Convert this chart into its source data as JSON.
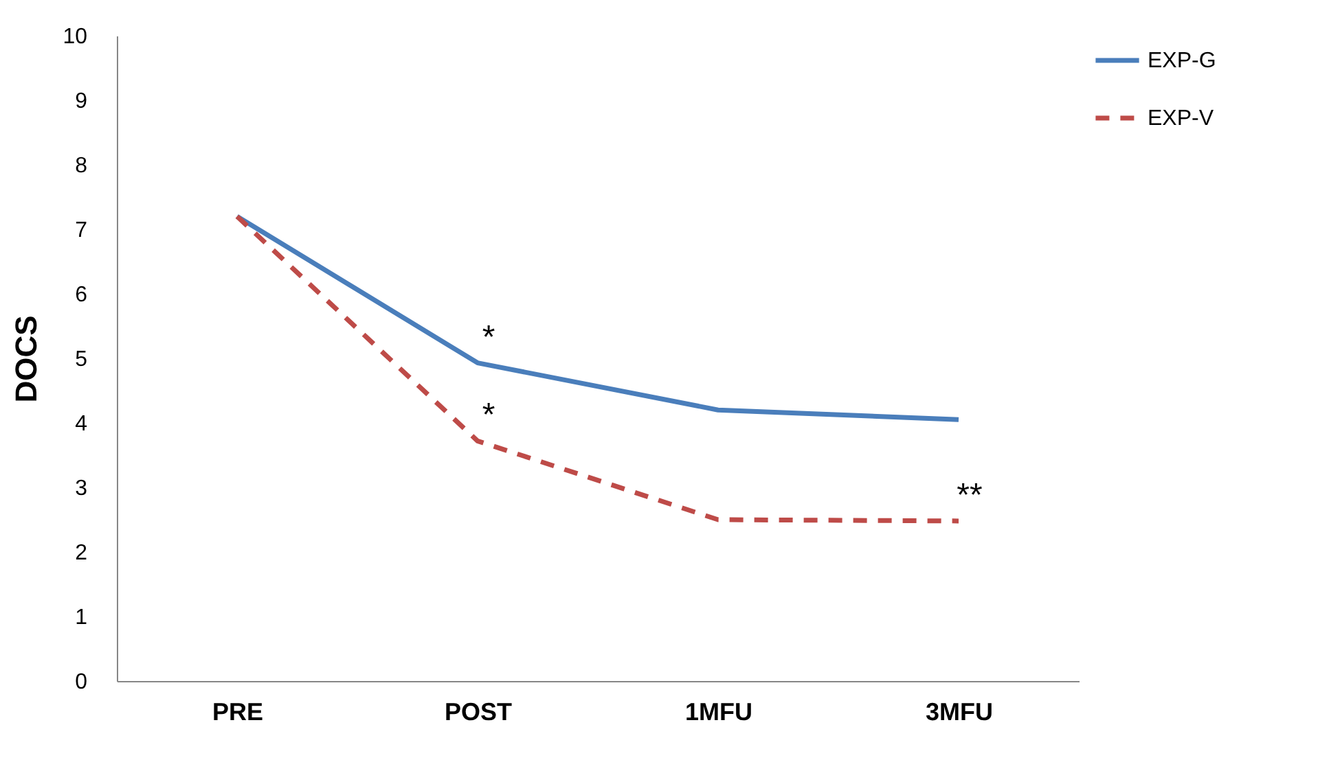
{
  "chart_data": {
    "type": "line",
    "ylabel": "DOCS",
    "categories": [
      "PRE",
      "POST",
      "1MFU",
      "3MFU"
    ],
    "series": [
      {
        "name": "EXP-G",
        "color": "#4a7ebb",
        "line_style": "solid",
        "values": [
          7.2,
          4.93,
          4.2,
          4.05
        ]
      },
      {
        "name": "EXP-V",
        "color": "#be4b48",
        "line_style": "dashed",
        "values": [
          7.2,
          3.72,
          2.5,
          2.48
        ]
      }
    ],
    "ylim": [
      0,
      10
    ],
    "yticks": [
      0,
      1,
      2,
      3,
      4,
      5,
      6,
      7,
      8,
      9,
      10
    ],
    "grid": false,
    "legend": "right",
    "marker": "none",
    "annotations": [
      {
        "text": "*",
        "x": "POST",
        "y": 4.93
      },
      {
        "text": "*",
        "x": "POST",
        "y": 3.72
      },
      {
        "text": "**",
        "x": "3MFU",
        "y": 2.48
      }
    ]
  }
}
